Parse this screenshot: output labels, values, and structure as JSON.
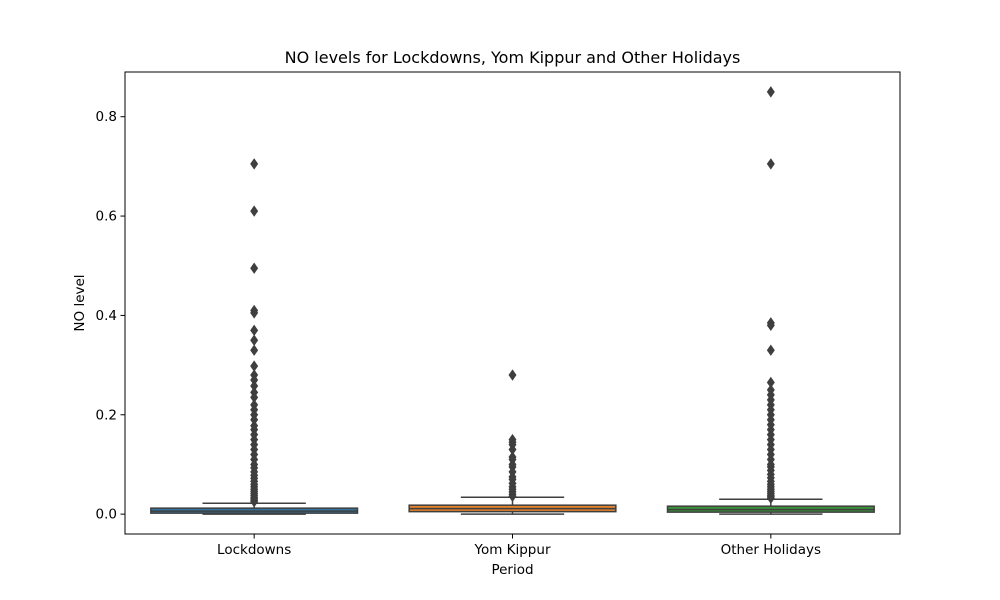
{
  "chart_data": {
    "type": "box",
    "title": "NO levels for Lockdowns, Yom Kippur and Other Holidays",
    "xlabel": "Period",
    "ylabel": "NO level",
    "categories": [
      "Lockdowns",
      "Yom Kippur",
      "Other Holidays"
    ],
    "ylim": [
      -0.04,
      0.89
    ],
    "yticks": [
      0.0,
      0.2,
      0.4,
      0.6,
      0.8
    ],
    "ytick_labels": [
      "0.0",
      "0.2",
      "0.4",
      "0.6",
      "0.8"
    ],
    "grid": false,
    "legend": "none",
    "boxes": [
      {
        "category": "Lockdowns",
        "color": "#3274a1",
        "whisker_low": 0.0,
        "q1": 0.003,
        "median": 0.006,
        "q3": 0.011,
        "whisker_high": 0.022,
        "outliers": [
          0.705,
          0.61,
          0.495,
          0.41,
          0.405,
          0.37,
          0.35,
          0.33,
          0.298,
          0.28,
          0.27,
          0.258,
          0.245,
          0.235,
          0.22,
          0.21,
          0.2,
          0.19,
          0.178,
          0.17,
          0.16,
          0.15,
          0.14,
          0.13,
          0.12,
          0.11,
          0.1,
          0.093,
          0.085,
          0.078,
          0.072,
          0.066,
          0.06,
          0.055,
          0.05,
          0.046,
          0.042,
          0.038,
          0.034,
          0.031,
          0.028,
          0.025
        ]
      },
      {
        "category": "Yom Kippur",
        "color": "#e1812c",
        "whisker_low": 0.0,
        "q1": 0.005,
        "median": 0.011,
        "q3": 0.018,
        "whisker_high": 0.034,
        "outliers": [
          0.28,
          0.15,
          0.145,
          0.14,
          0.13,
          0.115,
          0.11,
          0.1,
          0.095,
          0.085,
          0.075,
          0.07,
          0.062,
          0.055,
          0.05,
          0.045,
          0.04,
          0.036
        ]
      },
      {
        "category": "Other Holidays",
        "color": "#3a923a",
        "whisker_low": 0.0,
        "q1": 0.004,
        "median": 0.009,
        "q3": 0.016,
        "whisker_high": 0.03,
        "outliers": [
          0.85,
          0.705,
          0.385,
          0.38,
          0.33,
          0.265,
          0.25,
          0.24,
          0.23,
          0.22,
          0.21,
          0.2,
          0.19,
          0.18,
          0.17,
          0.16,
          0.15,
          0.14,
          0.13,
          0.12,
          0.11,
          0.1,
          0.095,
          0.088,
          0.08,
          0.073,
          0.066,
          0.06,
          0.055,
          0.05,
          0.046,
          0.042,
          0.038,
          0.035,
          0.032
        ]
      }
    ]
  }
}
